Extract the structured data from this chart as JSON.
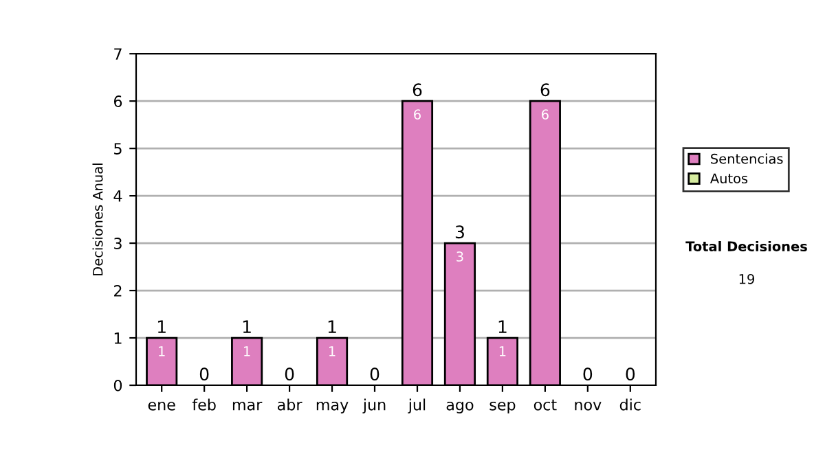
{
  "chart_data": {
    "type": "bar",
    "stacked": true,
    "ylabel": "Decisiones Anual",
    "categories": [
      "ene",
      "feb",
      "mar",
      "abr",
      "may",
      "jun",
      "jul",
      "ago",
      "sep",
      "oct",
      "nov",
      "dic"
    ],
    "series": [
      {
        "name": "Sentencias",
        "color": "#de7fbf",
        "values": [
          1,
          0,
          1,
          0,
          1,
          0,
          6,
          3,
          1,
          6,
          0,
          0
        ],
        "value_labels": [
          "1",
          null,
          "1",
          null,
          "1",
          null,
          "6",
          "3",
          "1",
          "6",
          null,
          null
        ]
      },
      {
        "name": "Autos",
        "color": "#d6eca0",
        "values": [
          0,
          0,
          0,
          0,
          0,
          0,
          0,
          0,
          0,
          0,
          0,
          0
        ]
      }
    ],
    "totals": [
      "1",
      "0",
      "1",
      "0",
      "1",
      "0",
      "6",
      "3",
      "1",
      "6",
      "0",
      "0"
    ],
    "ylim": [
      0,
      7
    ],
    "yticks": [
      0,
      1,
      2,
      3,
      4,
      5,
      6,
      7
    ],
    "grid": "y",
    "legend": "right",
    "annotations": [
      "Total Decisiones",
      "19"
    ]
  }
}
